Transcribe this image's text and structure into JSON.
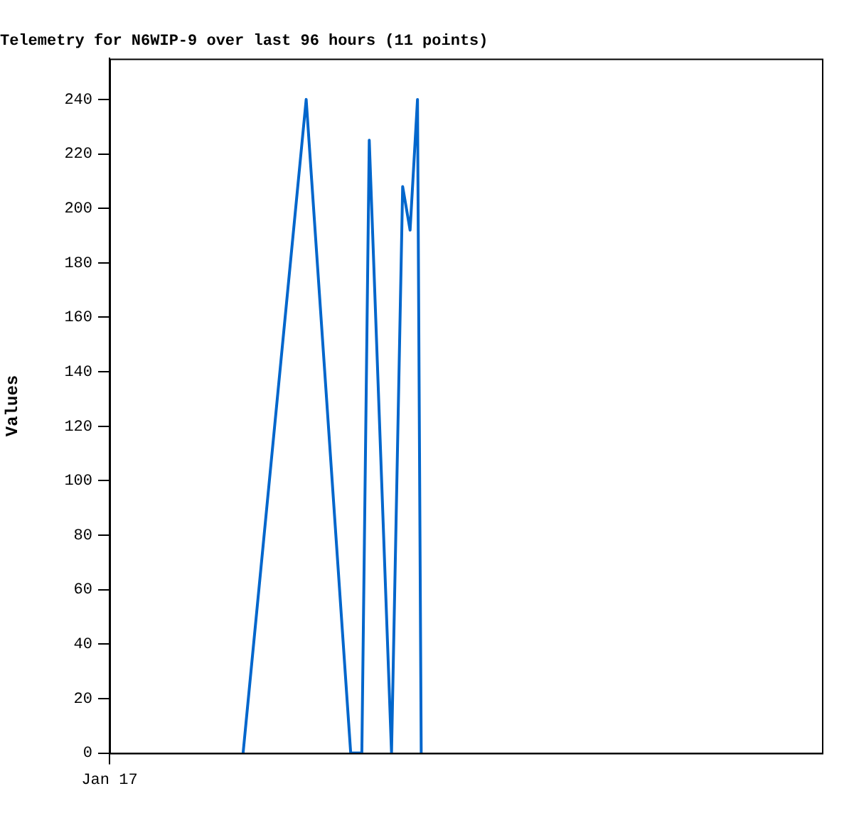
{
  "chart_data": {
    "type": "line",
    "title": "Telemetry for N6WIP-9 over last 96 hours (11 points)",
    "ylabel": "Values",
    "categories": [
      "Jan 17",
      null,
      null,
      null,
      null,
      null,
      null,
      null,
      null,
      null,
      null,
      null,
      null,
      null,
      null,
      null,
      null,
      null,
      null,
      null,
      null,
      null,
      null,
      null,
      null,
      null,
      null,
      null,
      null,
      null,
      null,
      null,
      null,
      null,
      null,
      null,
      null,
      null,
      null,
      null,
      null,
      null,
      null,
      null,
      null,
      null,
      null,
      null,
      null,
      null,
      null,
      null,
      null,
      null,
      null,
      null,
      null,
      null,
      null,
      null,
      null,
      null,
      null,
      null,
      null,
      null,
      null,
      null,
      null,
      null,
      null,
      null,
      null,
      null,
      null,
      null,
      null,
      null,
      null,
      null,
      null,
      null,
      null,
      null,
      null,
      null,
      null,
      null,
      null,
      null,
      null,
      null,
      null,
      null,
      null,
      null,
      null,
      null,
      null,
      null,
      null,
      null,
      null,
      null,
      null,
      null,
      null,
      null,
      null,
      null,
      null,
      null,
      null,
      null,
      null,
      null,
      null,
      null,
      null,
      null,
      null,
      null,
      null,
      null,
      null,
      null,
      null,
      null,
      null,
      null,
      null,
      null,
      null,
      null,
      null,
      null,
      null,
      null,
      null,
      null,
      null,
      null,
      null,
      null,
      null,
      null,
      null,
      null,
      null,
      null,
      null,
      null,
      null,
      null,
      null,
      null,
      null,
      null,
      null,
      null,
      null,
      null,
      null,
      null,
      null,
      null,
      null,
      null,
      null,
      null,
      null,
      null,
      null,
      null,
      null,
      null,
      null,
      null,
      null,
      null,
      null,
      null,
      null,
      null,
      null,
      null,
      null,
      null,
      null,
      null,
      null,
      null,
      null
    ],
    "series": [
      {
        "color": "#0066cc",
        "values": [
          null,
          null,
          null,
          null,
          null,
          null,
          null,
          null,
          null,
          null,
          null,
          null,
          null,
          null,
          null,
          null,
          null,
          null,
          null,
          null,
          null,
          null,
          null,
          null,
          null,
          null,
          null,
          null,
          null,
          null,
          null,
          null,
          null,
          null,
          null,
          null,
          0,
          null,
          null,
          null,
          null,
          null,
          null,
          null,
          null,
          null,
          null,
          null,
          null,
          null,
          null,
          null,
          null,
          240,
          null,
          null,
          null,
          null,
          null,
          null,
          null,
          null,
          null,
          null,
          null,
          0,
          null,
          null,
          0,
          null,
          225,
          null,
          null,
          null,
          null,
          null,
          0,
          null,
          null,
          208,
          200,
          192,
          null,
          240,
          0,
          null,
          null,
          null,
          null,
          null,
          null,
          null,
          null,
          null,
          null,
          null,
          null,
          null,
          null,
          null,
          null,
          null,
          null,
          null,
          null,
          null,
          null,
          null,
          null,
          null,
          null,
          null,
          null,
          null,
          null,
          null,
          null,
          null,
          null,
          null,
          null,
          null,
          null,
          null,
          null,
          null,
          null,
          null,
          null,
          null,
          null,
          null,
          null,
          null,
          null,
          null,
          null,
          null,
          null,
          null,
          null,
          null,
          null,
          null,
          null,
          null,
          null,
          null,
          null,
          null,
          null,
          null,
          null,
          null,
          null,
          null,
          null,
          null,
          null,
          null,
          null,
          null,
          null,
          null,
          null,
          null,
          null,
          null,
          null,
          null,
          null,
          null,
          null,
          null,
          null,
          null,
          null,
          null,
          null,
          null,
          null,
          null,
          null,
          null,
          null,
          null,
          null,
          null,
          null,
          null,
          null,
          null,
          null
        ]
      }
    ],
    "ylim": [
      0,
      255
    ],
    "yticks": [
      0,
      20,
      40,
      60,
      80,
      100,
      120,
      140,
      160,
      180,
      200,
      220,
      240
    ],
    "grid": false,
    "legend": false,
    "marker": "none",
    "line_style": "solid"
  }
}
